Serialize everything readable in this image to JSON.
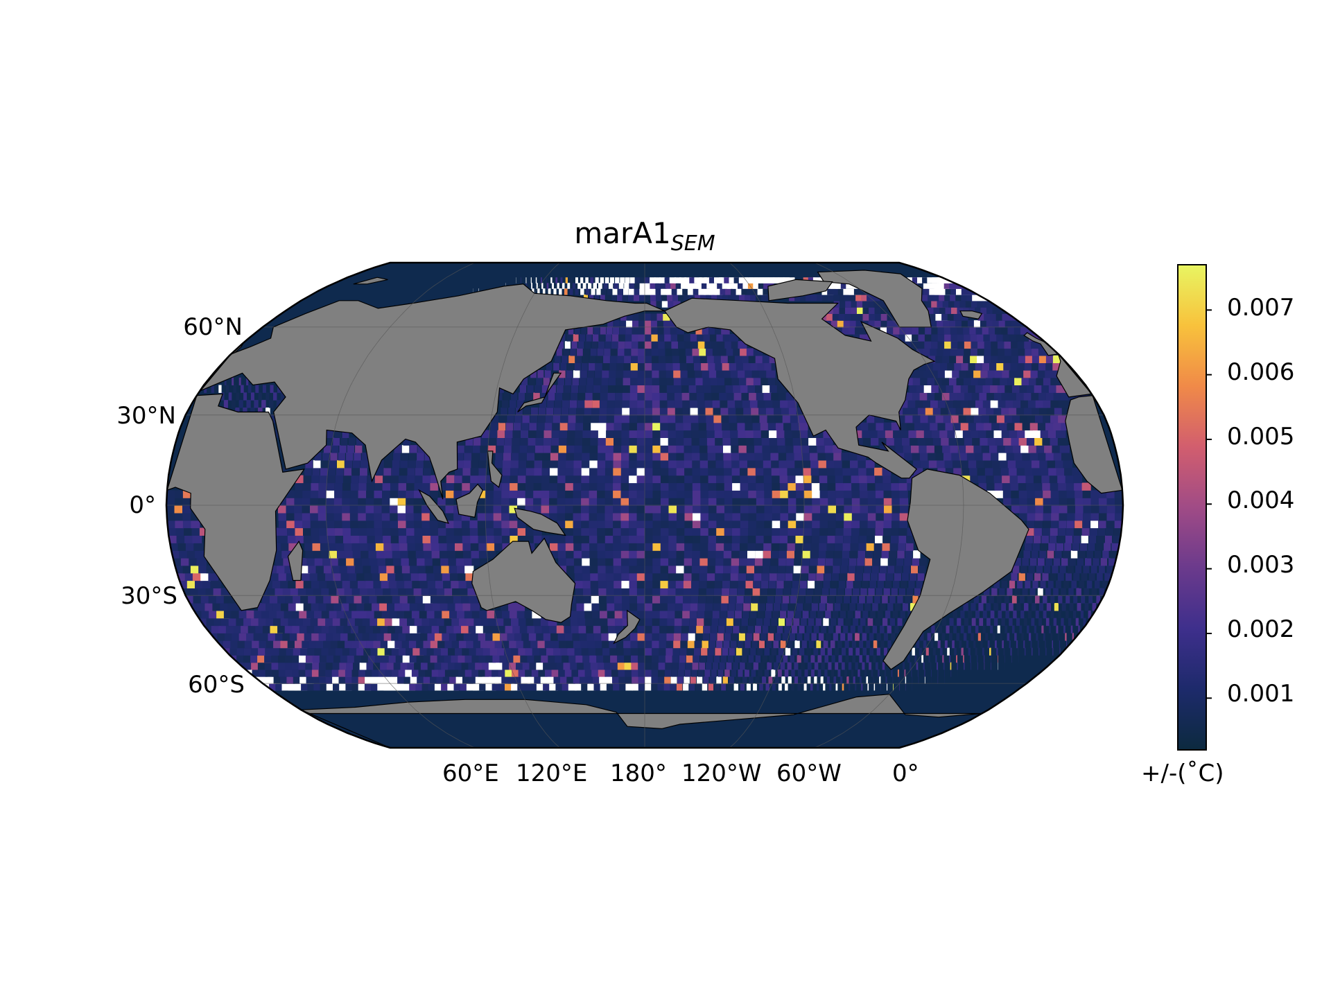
{
  "figure": {
    "title_main": "marA1",
    "title_sub": "SEM",
    "projection": "Robinson, central meridian 180°",
    "lat_labels": [
      "60°N",
      "30°N",
      "0°",
      "30°S",
      "60°S"
    ],
    "lon_labels": [
      "60°E",
      "120°E",
      "180°",
      "120°W",
      "60°W",
      "0°"
    ]
  },
  "colorbar": {
    "unit_label": "+/-($^\\circ$C)",
    "unit_display": "+/-(˚C)",
    "tick_labels": [
      "0.007",
      "0.006",
      "0.005",
      "0.004",
      "0.003",
      "0.002",
      "0.001"
    ],
    "range": [
      0.0002,
      0.0077
    ],
    "colormap": "thermal (cmocean)",
    "colormap_stops": [
      "#0c2a3f",
      "#1d2a6b",
      "#3e2f8c",
      "#6b3a8c",
      "#a04b86",
      "#d25e6e",
      "#f08a48",
      "#f8c23c",
      "#e8f562"
    ]
  },
  "map": {
    "land_color": "#808080",
    "missing_color": "#ffffff",
    "gridline_color": "#555555",
    "value_distribution": "mostly 0.0008–0.002 over open ocean; sparse hotspots up to 0.0075"
  },
  "chart_data": {
    "type": "heatmap",
    "title": "marA1_SEM",
    "colorbar_label": "+/-($^\\circ$C)",
    "zlim": [
      0.0002,
      0.0077
    ],
    "colorbar_ticks": [
      0.001,
      0.002,
      0.003,
      0.004,
      0.005,
      0.006,
      0.007
    ],
    "lat_ticks": [
      60,
      30,
      0,
      -30,
      -60
    ],
    "lon_ticks": [
      60,
      120,
      180,
      -120,
      -60,
      0
    ]
  }
}
